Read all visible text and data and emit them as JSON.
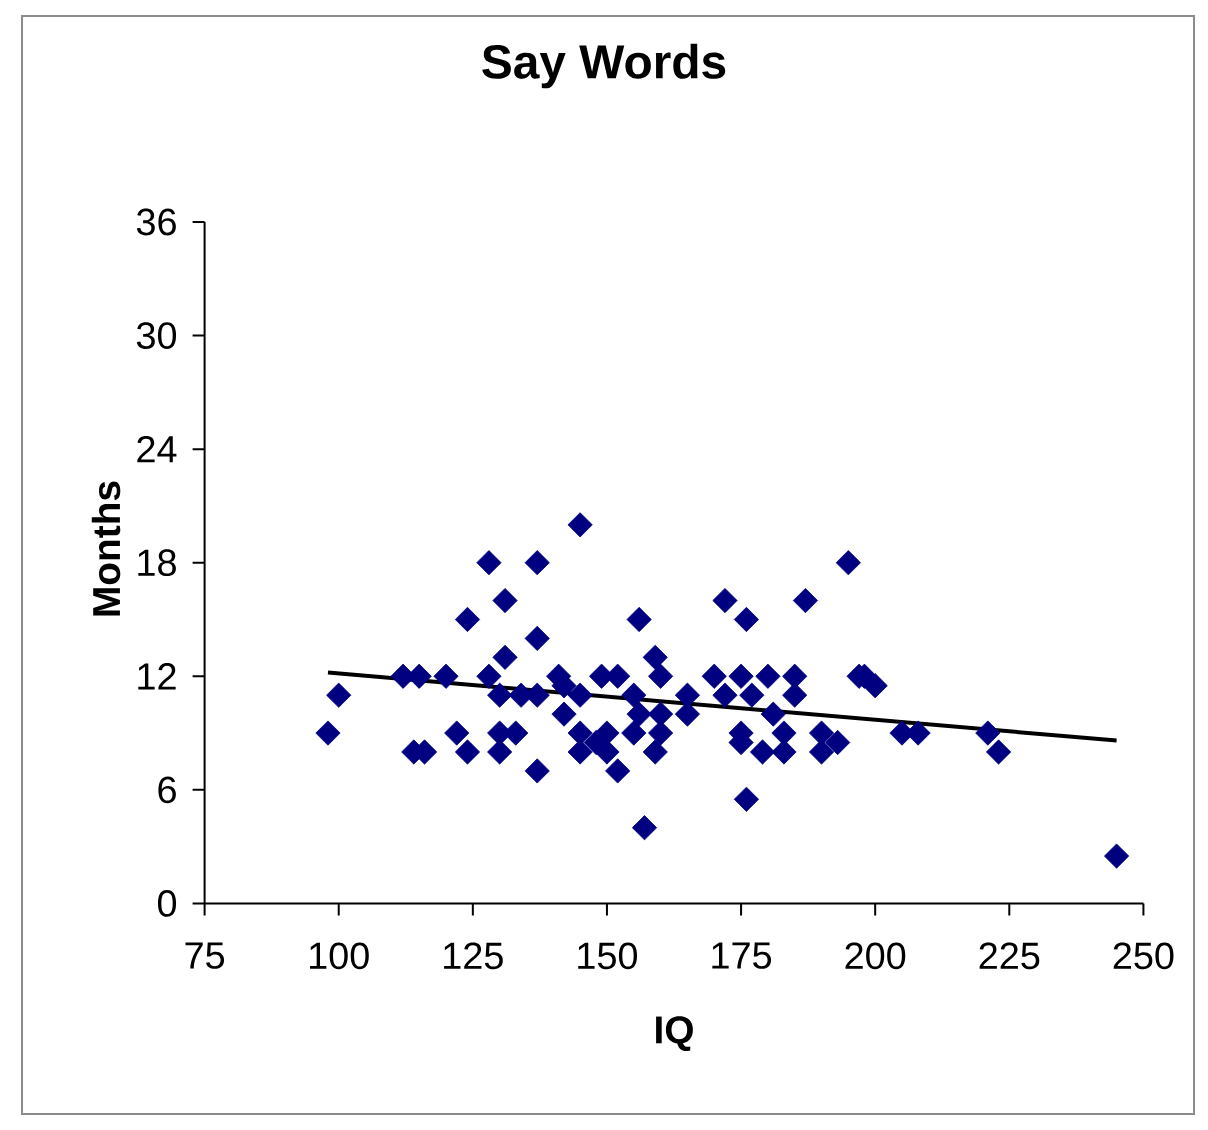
{
  "chart_data": {
    "type": "scatter",
    "title": "Say Words",
    "xlabel": "IQ",
    "ylabel": "Months",
    "xlim": [
      75,
      250
    ],
    "xticks": [
      75,
      100,
      125,
      150,
      175,
      200,
      225,
      250
    ],
    "ylim": [
      0,
      36
    ],
    "yticks": [
      0,
      6,
      12,
      18,
      24,
      30,
      36
    ],
    "series": [
      {
        "color": "#000080",
        "marker": "diamond",
        "x": [
          98,
          100,
          112,
          114,
          116,
          115,
          120,
          122,
          124,
          124,
          128,
          128,
          130,
          131,
          131,
          130,
          133,
          130,
          134,
          137,
          137,
          137,
          137,
          141,
          142,
          142,
          145,
          145,
          145,
          145,
          148,
          149,
          150,
          150,
          152,
          152,
          155,
          156,
          156,
          155,
          157,
          159,
          159,
          160,
          160,
          160,
          165,
          165,
          170,
          172,
          172,
          175,
          176,
          175,
          175,
          176,
          177,
          179,
          180,
          181,
          183,
          183,
          185,
          185,
          187,
          190,
          190,
          193,
          195,
          197,
          198,
          200,
          205,
          208,
          221,
          223,
          245
        ],
        "values": [
          9,
          11,
          12,
          8,
          8,
          12,
          12,
          9,
          8,
          15,
          18,
          12,
          11,
          16,
          13,
          9,
          9,
          8,
          11,
          18,
          14,
          11,
          7,
          12,
          11.5,
          10,
          20,
          11,
          9,
          8,
          8.5,
          12,
          9,
          8,
          12,
          7,
          11,
          15,
          10,
          9,
          4,
          8,
          13,
          12,
          10,
          9,
          11,
          10,
          12,
          16,
          11,
          12,
          15,
          9,
          8.5,
          5.5,
          11,
          8,
          12,
          10,
          9,
          8,
          12,
          11,
          16,
          9,
          8,
          8.5,
          18,
          12,
          12,
          11.5,
          9,
          9,
          9,
          8,
          2.5
        ]
      },
      {
        "type": "line",
        "color": "#000000",
        "marker": "none",
        "x": [
          98,
          245
        ],
        "values": [
          12.2,
          8.6
        ]
      }
    ]
  }
}
